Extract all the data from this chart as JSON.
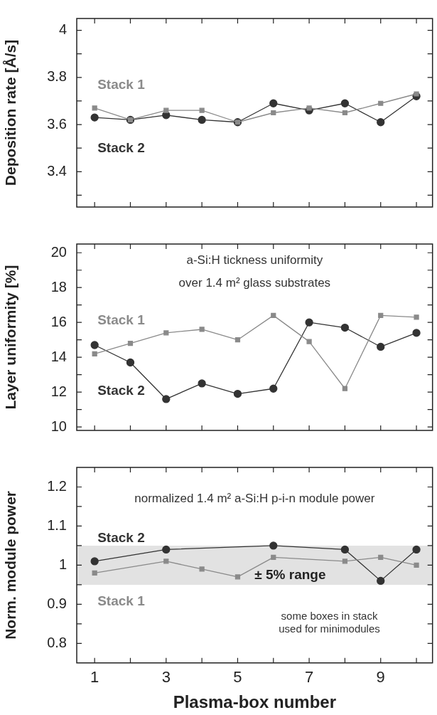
{
  "chart_data": [
    {
      "type": "line",
      "ylabel": "Deposition rate [Å/s]",
      "x": [
        1,
        2,
        3,
        4,
        5,
        6,
        7,
        8,
        9,
        10
      ],
      "xlim": [
        0.5,
        10.45
      ],
      "xticks": [
        1,
        {
          "value": 2,
          "label": null
        },
        3,
        {
          "value": 4,
          "label": null
        },
        5,
        {
          "value": 6,
          "label": null
        },
        7,
        {
          "value": 8,
          "label": null
        },
        9,
        {
          "value": 10,
          "label": null
        }
      ],
      "ylim": [
        3.25,
        4.05
      ],
      "yticks": [
        {
          "value": 3.3,
          "label": null
        },
        3.4,
        {
          "value": 3.5,
          "label": null
        },
        3.6,
        {
          "value": 3.7,
          "label": null
        },
        3.8,
        {
          "value": 3.9,
          "label": null
        },
        4
      ],
      "tick_labels": "y",
      "grid": false,
      "legend": false,
      "series": [
        {
          "name": "Stack 1",
          "color": "#8a8a8a",
          "marker": "square",
          "values": [
            3.67,
            3.62,
            3.66,
            3.66,
            3.61,
            3.65,
            3.67,
            3.65,
            3.69,
            3.73
          ]
        },
        {
          "name": "Stack 2",
          "color": "#333333",
          "marker": "circle",
          "values": [
            3.63,
            3.62,
            3.64,
            3.62,
            3.61,
            3.69,
            3.66,
            3.69,
            3.61,
            3.72
          ]
        }
      ]
    },
    {
      "type": "line",
      "ylabel": "Layer uniformity [%]",
      "x": [
        1,
        2,
        3,
        4,
        5,
        6,
        7,
        8,
        9,
        10
      ],
      "xlim": [
        0.5,
        10.45
      ],
      "xticks": [
        1,
        {
          "value": 2,
          "label": null
        },
        3,
        {
          "value": 4,
          "label": null
        },
        5,
        {
          "value": 6,
          "label": null
        },
        7,
        {
          "value": 8,
          "label": null
        },
        9,
        {
          "value": 10,
          "label": null
        }
      ],
      "ylim": [
        9.8,
        20.5
      ],
      "yticks": [
        10,
        {
          "value": 11,
          "label": null
        },
        12,
        {
          "value": 13,
          "label": null
        },
        14,
        {
          "value": 15,
          "label": null
        },
        16,
        {
          "value": 17,
          "label": null
        },
        18,
        {
          "value": 19,
          "label": null
        },
        20
      ],
      "tick_labels": "y",
      "grid": false,
      "legend": false,
      "annotations": [
        "a-Si:H tickness uniformity",
        "over 1.4 m² glass substrates"
      ],
      "series": [
        {
          "name": "Stack 1",
          "color": "#8a8a8a",
          "marker": "square",
          "values": [
            14.2,
            14.8,
            15.4,
            15.6,
            15.0,
            16.4,
            14.9,
            12.2,
            16.4,
            16.3
          ]
        },
        {
          "name": "Stack 2",
          "color": "#333333",
          "marker": "circle",
          "values": [
            14.7,
            13.7,
            11.6,
            12.5,
            11.9,
            12.2,
            16.0,
            15.7,
            14.6,
            15.4
          ]
        }
      ]
    },
    {
      "type": "line",
      "ylabel": "Norm. module power",
      "xlabel": "Plasma-box number",
      "x": [
        1,
        2,
        3,
        4,
        5,
        6,
        7,
        8,
        9,
        10
      ],
      "xlim": [
        0.5,
        10.45
      ],
      "xticks": [
        1,
        {
          "value": 2,
          "label": null
        },
        3,
        {
          "value": 4,
          "label": null
        },
        5,
        {
          "value": 6,
          "label": null
        },
        7,
        {
          "value": 8,
          "label": null
        },
        9,
        {
          "value": 10,
          "label": null
        }
      ],
      "ylim": [
        0.75,
        1.25
      ],
      "yticks": [
        0.8,
        {
          "value": 0.85,
          "label": null
        },
        0.9,
        {
          "value": 0.95,
          "label": null
        },
        1,
        {
          "value": 1.05,
          "label": null
        },
        1.1,
        {
          "value": 1.15,
          "label": null
        },
        1.2
      ],
      "grid": false,
      "legend": false,
      "annotations": [
        "normalized 1.4 m² a-Si:H p-i-n module power",
        "some boxes in stack",
        "used for minimodules"
      ],
      "bands": [
        {
          "axis": "y",
          "from": 0.95,
          "to": 1.05,
          "label": "± 5% range",
          "color": "#e2e2e2"
        }
      ],
      "series": [
        {
          "name": "Stack 1",
          "color": "#8a8a8a",
          "marker": "square",
          "values": [
            0.98,
            null,
            1.01,
            0.99,
            0.97,
            1.02,
            null,
            1.01,
            1.02,
            1.0
          ]
        },
        {
          "name": "Stack 2",
          "color": "#333333",
          "marker": "circle",
          "values": [
            1.01,
            null,
            1.04,
            null,
            null,
            1.05,
            null,
            1.04,
            0.96,
            1.04
          ]
        }
      ]
    }
  ]
}
